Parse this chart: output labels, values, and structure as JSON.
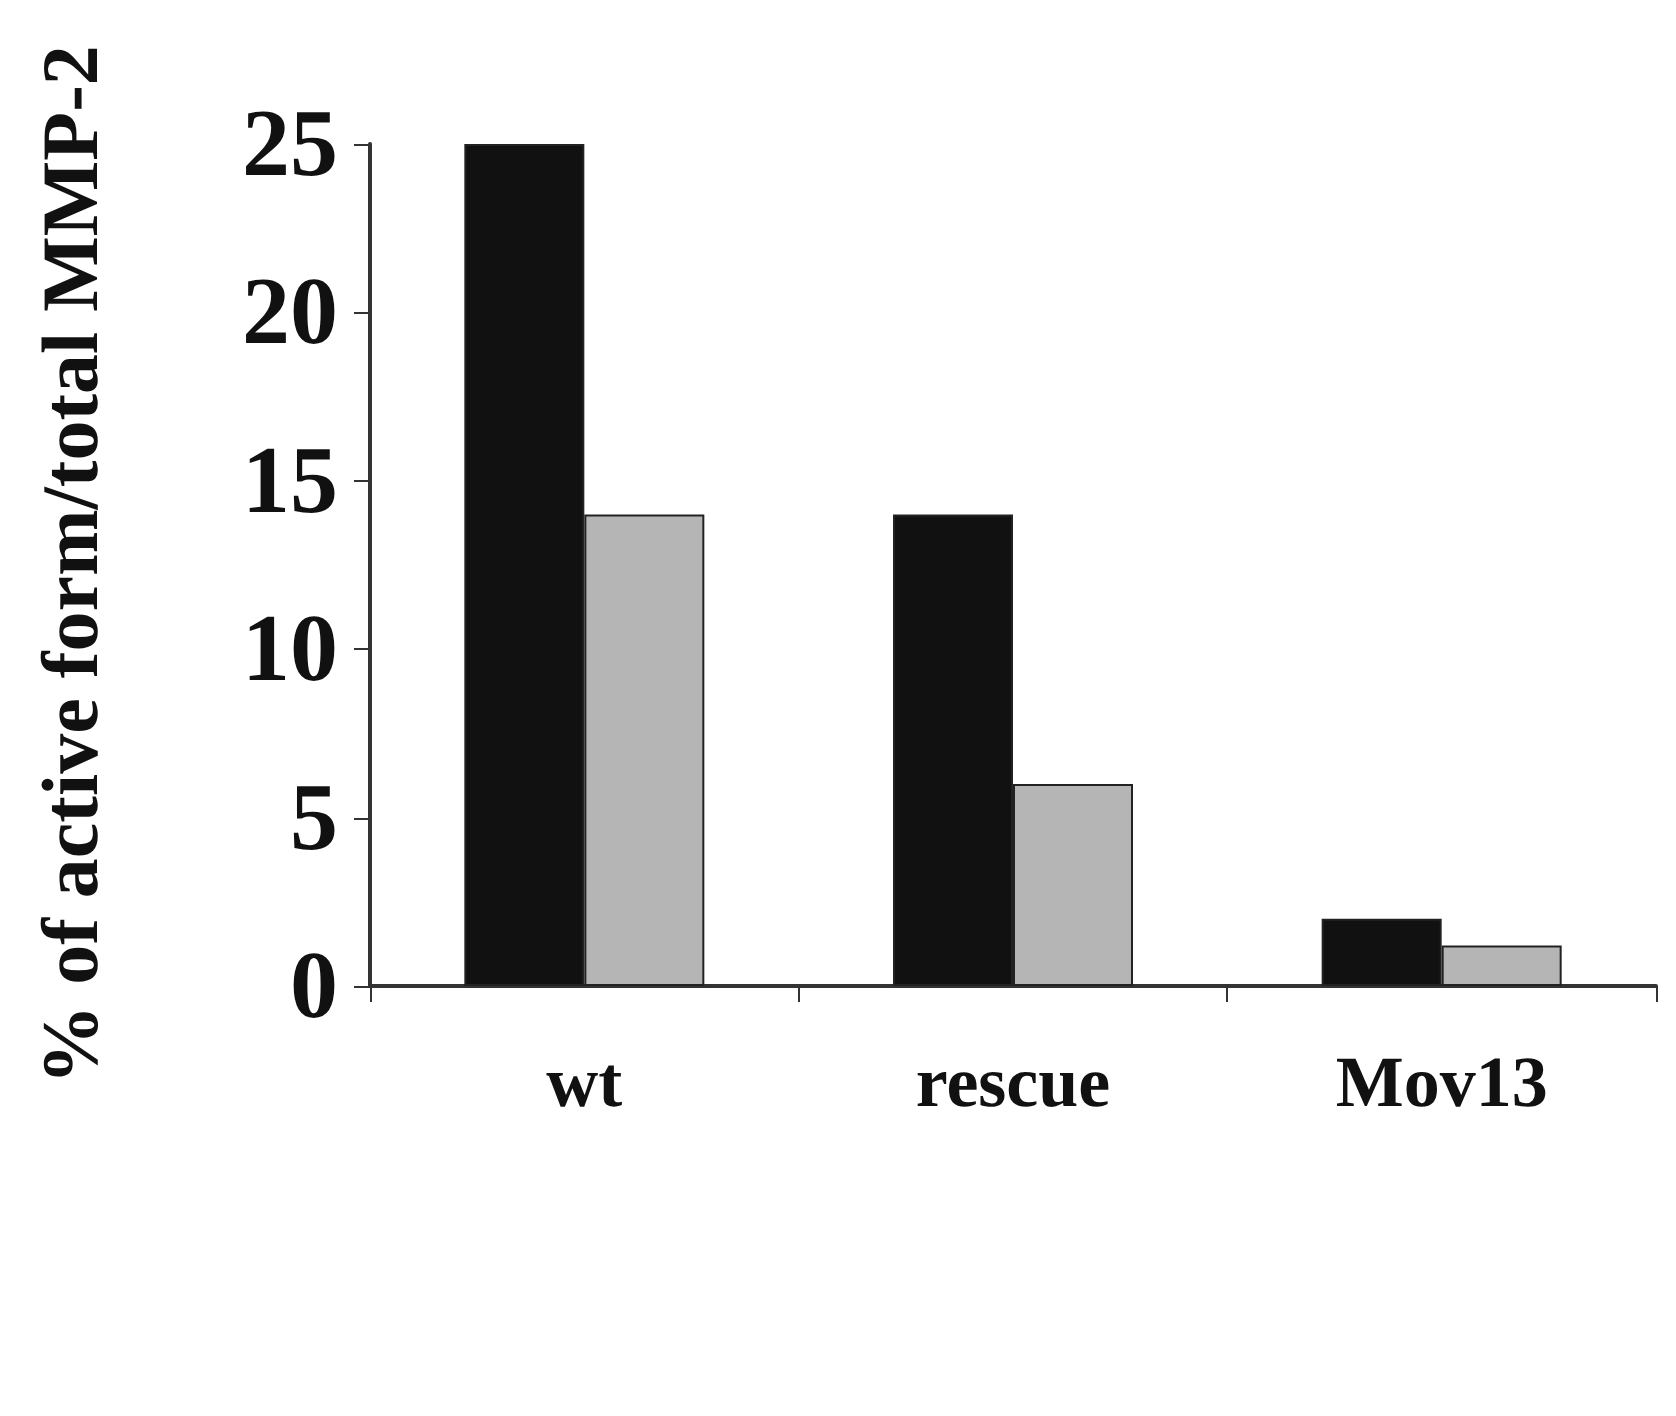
{
  "chart_data": {
    "type": "bar",
    "ylabel": "% of active form/total MMP-2",
    "categories": [
      "wt",
      "rescue",
      "Mov13"
    ],
    "series": [
      {
        "color": "#111111",
        "values": [
          25,
          14,
          2
        ]
      },
      {
        "color": "#b5b5b5",
        "values": [
          14,
          6,
          1.2
        ]
      }
    ],
    "ylim": [
      0,
      25
    ],
    "yticks": [
      0,
      5,
      10,
      15,
      20,
      25
    ],
    "grid": false
  }
}
